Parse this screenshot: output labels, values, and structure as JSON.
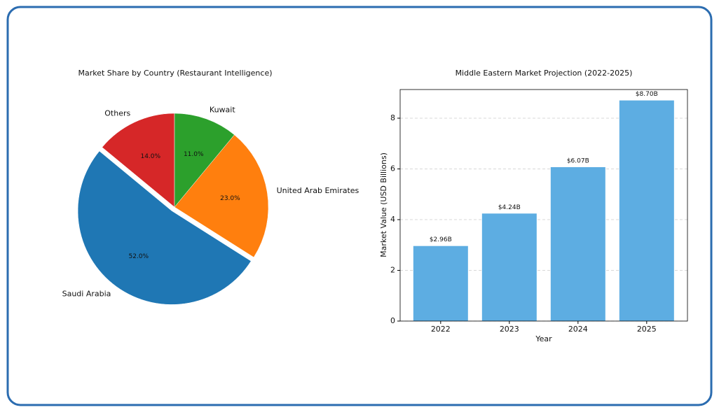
{
  "chart_data": [
    {
      "type": "pie",
      "title": "Market Share by Country (Restaurant Intelligence)",
      "categories": [
        "Others",
        "Saudi Arabia",
        "United Arab Emirates",
        "Kuwait"
      ],
      "values": [
        14,
        52,
        23,
        11
      ],
      "value_labels": [
        "14.0%",
        "52.0%",
        "23.0%",
        "11.0%"
      ],
      "colors": [
        "#d62728",
        "#1f77b4",
        "#ff7f0e",
        "#2ca02c"
      ],
      "explode": [
        0,
        0.05,
        0,
        0
      ]
    },
    {
      "type": "bar",
      "title": "Middle Eastern Market Projection (2022-2025)",
      "x_label": "Year",
      "y_label": "Market Value (USD Billions)",
      "categories": [
        "2022",
        "2023",
        "2024",
        "2025"
      ],
      "values": [
        2.96,
        4.24,
        6.07,
        8.7
      ],
      "value_labels": [
        "$2.96B",
        "$4.24B",
        "$6.07B",
        "$8.70B"
      ],
      "color": "#5dade2",
      "ylim": [
        0,
        9.13
      ],
      "yticks": [
        0,
        2,
        4,
        6,
        8
      ],
      "grid": true
    }
  ]
}
